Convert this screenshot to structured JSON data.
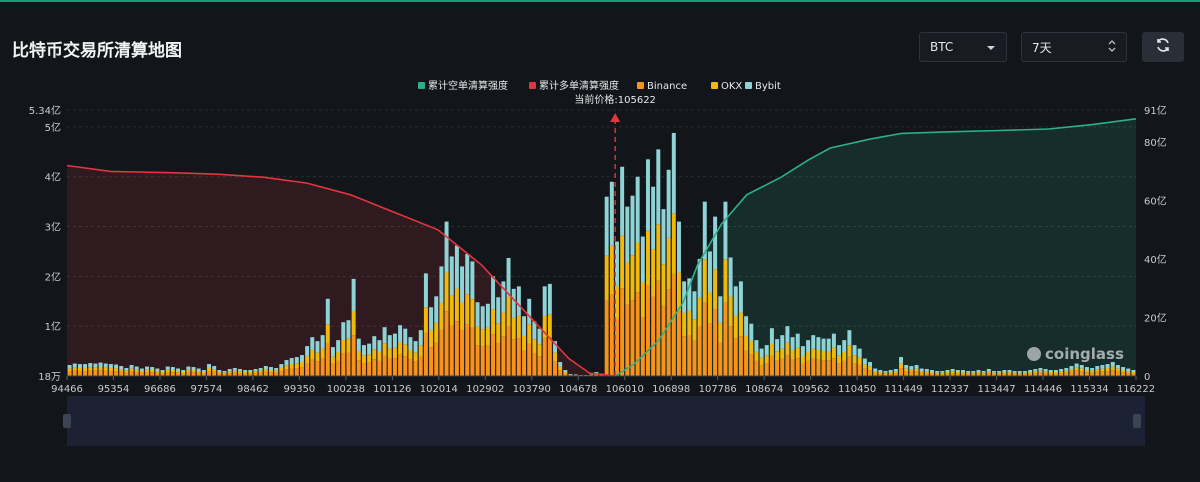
{
  "page": {
    "title": "比特币交易所清算地图",
    "coin_select": {
      "value": "BTC",
      "icon": "chevron-down-icon"
    },
    "range_select": {
      "value": "7天",
      "icon": "updown-chevron-icon"
    },
    "refresh_icon": "refresh-icon",
    "watermark": "coinglass"
  },
  "colors": {
    "background": "#12151a",
    "short_cum": "#2bb08a",
    "long_cum": "#e0363d",
    "binance": "#f7931a",
    "okx": "#f0b90b",
    "bybit": "#8ed3d5"
  },
  "chart_data": {
    "type": "bar",
    "legend": [
      "累计空单清算强度",
      "累计多单清算强度",
      "Binance",
      "OKX",
      "Bybit"
    ],
    "legend_position": "top-center",
    "current_price_label": "当前价格:105622",
    "current_price": 105622,
    "x_tick_labels": [
      "94466",
      "95354",
      "96686",
      "97574",
      "98462",
      "99350",
      "100238",
      "101126",
      "102014",
      "102902",
      "103790",
      "104678",
      "106010",
      "106898",
      "107786",
      "108674",
      "109562",
      "110450",
      "111449",
      "112337",
      "113447",
      "114446",
      "115334",
      "116222"
    ],
    "x_range": [
      94466,
      116222
    ],
    "y_left": {
      "tick_labels": [
        "18万",
        "1亿",
        "2亿",
        "3亿",
        "4亿",
        "5亿",
        "5.34亿"
      ],
      "range_yi": [
        0,
        5.34
      ]
    },
    "y_right": {
      "tick_labels": [
        "0",
        "20亿",
        "40亿",
        "60亿",
        "80亿",
        "91亿"
      ],
      "range_yi": [
        0,
        91
      ]
    },
    "grid": true,
    "bar_totals_yi": [
      0.22,
      0.25,
      0.24,
      0.24,
      0.26,
      0.25,
      0.27,
      0.25,
      0.24,
      0.23,
      0.2,
      0.16,
      0.22,
      0.19,
      0.15,
      0.19,
      0.18,
      0.15,
      0.12,
      0.19,
      0.18,
      0.15,
      0.12,
      0.19,
      0.18,
      0.15,
      0.12,
      0.24,
      0.2,
      0.12,
      0.1,
      0.14,
      0.16,
      0.14,
      0.12,
      0.12,
      0.14,
      0.16,
      0.2,
      0.18,
      0.16,
      0.24,
      0.32,
      0.36,
      0.38,
      0.42,
      0.6,
      0.78,
      0.7,
      0.82,
      1.55,
      0.58,
      0.72,
      1.08,
      1.12,
      1.95,
      0.75,
      0.62,
      0.65,
      0.8,
      0.72,
      0.98,
      0.82,
      0.85,
      1.02,
      0.95,
      0.78,
      0.7,
      0.92,
      2.06,
      1.38,
      1.6,
      2.2,
      3.1,
      2.4,
      2.62,
      2.2,
      2.45,
      2.3,
      1.48,
      1.4,
      1.45,
      2.0,
      1.58,
      1.9,
      2.37,
      1.75,
      1.8,
      1.2,
      1.55,
      1.1,
      0.95,
      1.8,
      1.85,
      0.7,
      0.28,
      0.12,
      0.04,
      0.03,
      0.02,
      0.02,
      0.03,
      0.08,
      0.05,
      3.6,
      3.9,
      2.7,
      4.2,
      3.4,
      3.62,
      4.0,
      2.8,
      4.35,
      3.8,
      4.55,
      3.35,
      4.14,
      4.88,
      3.1,
      1.9,
      1.96,
      1.7,
      2.35,
      3.5,
      2.5,
      3.2,
      1.6,
      3.5,
      2.38,
      1.8,
      1.9,
      1.2,
      1.05,
      0.72,
      0.55,
      0.62,
      0.96,
      0.74,
      0.82,
      1.0,
      0.78,
      0.85,
      0.6,
      0.72,
      0.82,
      0.78,
      0.75,
      0.75,
      0.85,
      0.62,
      0.72,
      0.92,
      0.62,
      0.55,
      0.35,
      0.28,
      0.15,
      0.12,
      0.1,
      0.12,
      0.14,
      0.38,
      0.22,
      0.2,
      0.22,
      0.15,
      0.14,
      0.12,
      0.1,
      0.1,
      0.12,
      0.14,
      0.12,
      0.12,
      0.1,
      0.1,
      0.12,
      0.1,
      0.14,
      0.1,
      0.1,
      0.12,
      0.12,
      0.1,
      0.1,
      0.1,
      0.12,
      0.14,
      0.16,
      0.14,
      0.12,
      0.12,
      0.14,
      0.16,
      0.2,
      0.25,
      0.22,
      0.18,
      0.16,
      0.2,
      0.22,
      0.24,
      0.28,
      0.22,
      0.18,
      0.15,
      0.12
    ],
    "series": [
      {
        "name": "累计空单清算强度",
        "axis": "right",
        "points": [
          [
            105622,
            0
          ],
          [
            106000,
            4
          ],
          [
            106500,
            12
          ],
          [
            107000,
            25
          ],
          [
            107300,
            38
          ],
          [
            107786,
            52
          ],
          [
            108300,
            62
          ],
          [
            109000,
            68
          ],
          [
            109562,
            74
          ],
          [
            110000,
            78
          ],
          [
            110800,
            81
          ],
          [
            111449,
            83
          ],
          [
            112337,
            83.5
          ],
          [
            113447,
            84
          ],
          [
            114446,
            84.5
          ],
          [
            115334,
            86
          ],
          [
            116222,
            88
          ]
        ]
      },
      {
        "name": "累计多单清算强度",
        "axis": "right",
        "points": [
          [
            94466,
            72
          ],
          [
            95354,
            70
          ],
          [
            96686,
            69.5
          ],
          [
            97574,
            69
          ],
          [
            98462,
            68
          ],
          [
            99350,
            66
          ],
          [
            100238,
            62
          ],
          [
            101126,
            56
          ],
          [
            102014,
            50
          ],
          [
            102902,
            38
          ],
          [
            103790,
            22
          ],
          [
            104678,
            6
          ],
          [
            105100,
            1
          ],
          [
            105622,
            0
          ]
        ]
      }
    ],
    "stack_fractions": {
      "Binance": 0.42,
      "OKX": 0.25,
      "Bybit": 0.33
    }
  }
}
